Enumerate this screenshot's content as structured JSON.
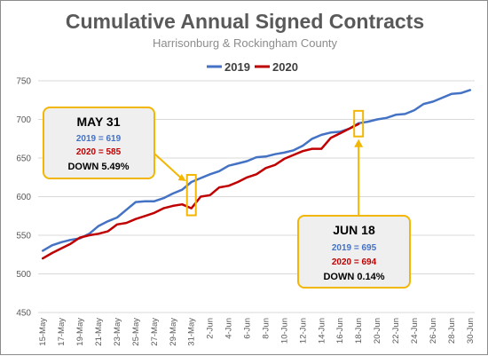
{
  "chart_data": {
    "type": "line",
    "title": "Cumulative Annual Signed Contracts",
    "subtitle": "Harrisonburg & Rockingham County",
    "ylim": [
      450,
      750
    ],
    "yticks": [
      450,
      500,
      550,
      600,
      650,
      700,
      750
    ],
    "x": [
      "15-May",
      "16-May",
      "17-May",
      "18-May",
      "19-May",
      "20-May",
      "21-May",
      "22-May",
      "23-May",
      "24-May",
      "25-May",
      "26-May",
      "27-May",
      "28-May",
      "29-May",
      "30-May",
      "31-May",
      "1-Jun",
      "2-Jun",
      "3-Jun",
      "4-Jun",
      "5-Jun",
      "6-Jun",
      "7-Jun",
      "8-Jun",
      "9-Jun",
      "10-Jun",
      "11-Jun",
      "12-Jun",
      "13-Jun",
      "14-Jun",
      "15-Jun",
      "16-Jun",
      "17-Jun",
      "18-Jun",
      "19-Jun",
      "20-Jun",
      "21-Jun",
      "22-Jun",
      "23-Jun",
      "24-Jun",
      "25-Jun",
      "26-Jun",
      "27-Jun",
      "28-Jun",
      "29-Jun",
      "30-Jun"
    ],
    "xtick_labels": [
      "15-May",
      "17-May",
      "19-May",
      "21-May",
      "23-May",
      "25-May",
      "27-May",
      "29-May",
      "31-May",
      "2-Jun",
      "4-Jun",
      "6-Jun",
      "8-Jun",
      "10-Jun",
      "12-Jun",
      "14-Jun",
      "16-Jun",
      "18-Jun",
      "20-Jun",
      "22-Jun",
      "24-Jun",
      "26-Jun",
      "28-Jun",
      "30-Jun"
    ],
    "grid": true,
    "legend_position": "top-center",
    "series": [
      {
        "name": "2019",
        "color": "#4472c4",
        "values": [
          530,
          537,
          541,
          544,
          546,
          552,
          562,
          568,
          573,
          583,
          593,
          594,
          594,
          598,
          604,
          609,
          619,
          624,
          629,
          633,
          640,
          643,
          646,
          651,
          652,
          655,
          657,
          660,
          666,
          675,
          680,
          683,
          684,
          688,
          695,
          697,
          700,
          702,
          706,
          707,
          712,
          720,
          723,
          728,
          733,
          734,
          738
        ]
      },
      {
        "name": "2020",
        "color": "#c00000",
        "values": [
          520,
          527,
          533,
          539,
          547,
          550,
          552,
          555,
          564,
          566,
          571,
          575,
          579,
          585,
          588,
          590,
          585,
          600,
          602,
          612,
          614,
          619,
          625,
          629,
          637,
          641,
          649,
          654,
          659,
          662,
          662,
          676,
          682,
          688,
          694,
          null,
          null,
          null,
          null,
          null,
          null,
          null,
          null,
          null,
          null,
          null,
          null
        ]
      }
    ],
    "callouts": [
      {
        "date": "MAY 31",
        "v2019": "2019 = 619",
        "v2020": "2020 = 585",
        "change": "DOWN 5.49%"
      },
      {
        "date": "JUN 18",
        "v2019": "2019 = 695",
        "v2020": "2020 = 694",
        "change": "DOWN 0.14%"
      }
    ],
    "highlight_color": "#f2b705"
  }
}
